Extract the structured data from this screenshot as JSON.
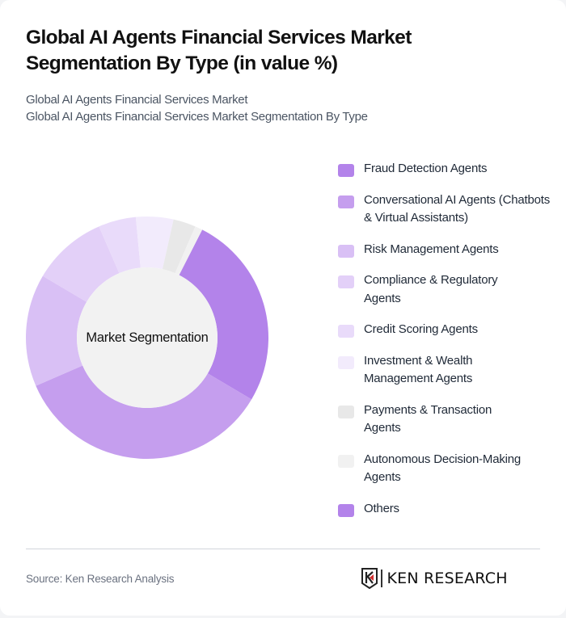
{
  "header": {
    "title": "Global AI Agents Financial Services Market Segmentation By Type (in value %)",
    "subtitle_line1": "Global AI Agents Financial Services Market",
    "subtitle_line2": "Global AI Agents Financial Services Market Segmentation By Type"
  },
  "chart": {
    "center_label": "Market Segmentation"
  },
  "legend": [
    {
      "label": "Fraud Detection Agents",
      "color": "#b383ea"
    },
    {
      "label": "Conversational AI Agents (Chatbots & Virtual Assistants)",
      "color": "#c59eee"
    },
    {
      "label": "Risk Management Agents",
      "color": "#d9c0f5"
    },
    {
      "label": "Compliance & Regulatory Agents",
      "color": "#e3d0f8"
    },
    {
      "label": "Credit Scoring Agents",
      "color": "#e9dbfa"
    },
    {
      "label": "Investment & Wealth Management Agents",
      "color": "#f2ebfc"
    },
    {
      "label": "Payments & Transaction Agents",
      "color": "#e8e8e8"
    },
    {
      "label": "Autonomous Decision-Making Agents",
      "color": "#f1f1f1"
    },
    {
      "label": "Others",
      "color": "#b383ea"
    }
  ],
  "footer": {
    "source": "Source: Ken Research Analysis",
    "logo_text": "KEN RESEARCH"
  },
  "chart_data": {
    "type": "pie",
    "variant": "donut",
    "title": "Global AI Agents Financial Services Market Segmentation By Type (in value %)",
    "center_label": "Market Segmentation",
    "categories": [
      "Fraud Detection Agents",
      "Conversational AI Agents (Chatbots & Virtual Assistants)",
      "Risk Management Agents",
      "Compliance & Regulatory Agents",
      "Credit Scoring Agents",
      "Investment & Wealth Management Agents",
      "Payments & Transaction Agents",
      "Autonomous Decision-Making Agents",
      "Others"
    ],
    "values": [
      26,
      35,
      15,
      10,
      5,
      5,
      3,
      1,
      0
    ],
    "start_angle_deg": 27,
    "legend_position": "right",
    "unit": "%"
  }
}
